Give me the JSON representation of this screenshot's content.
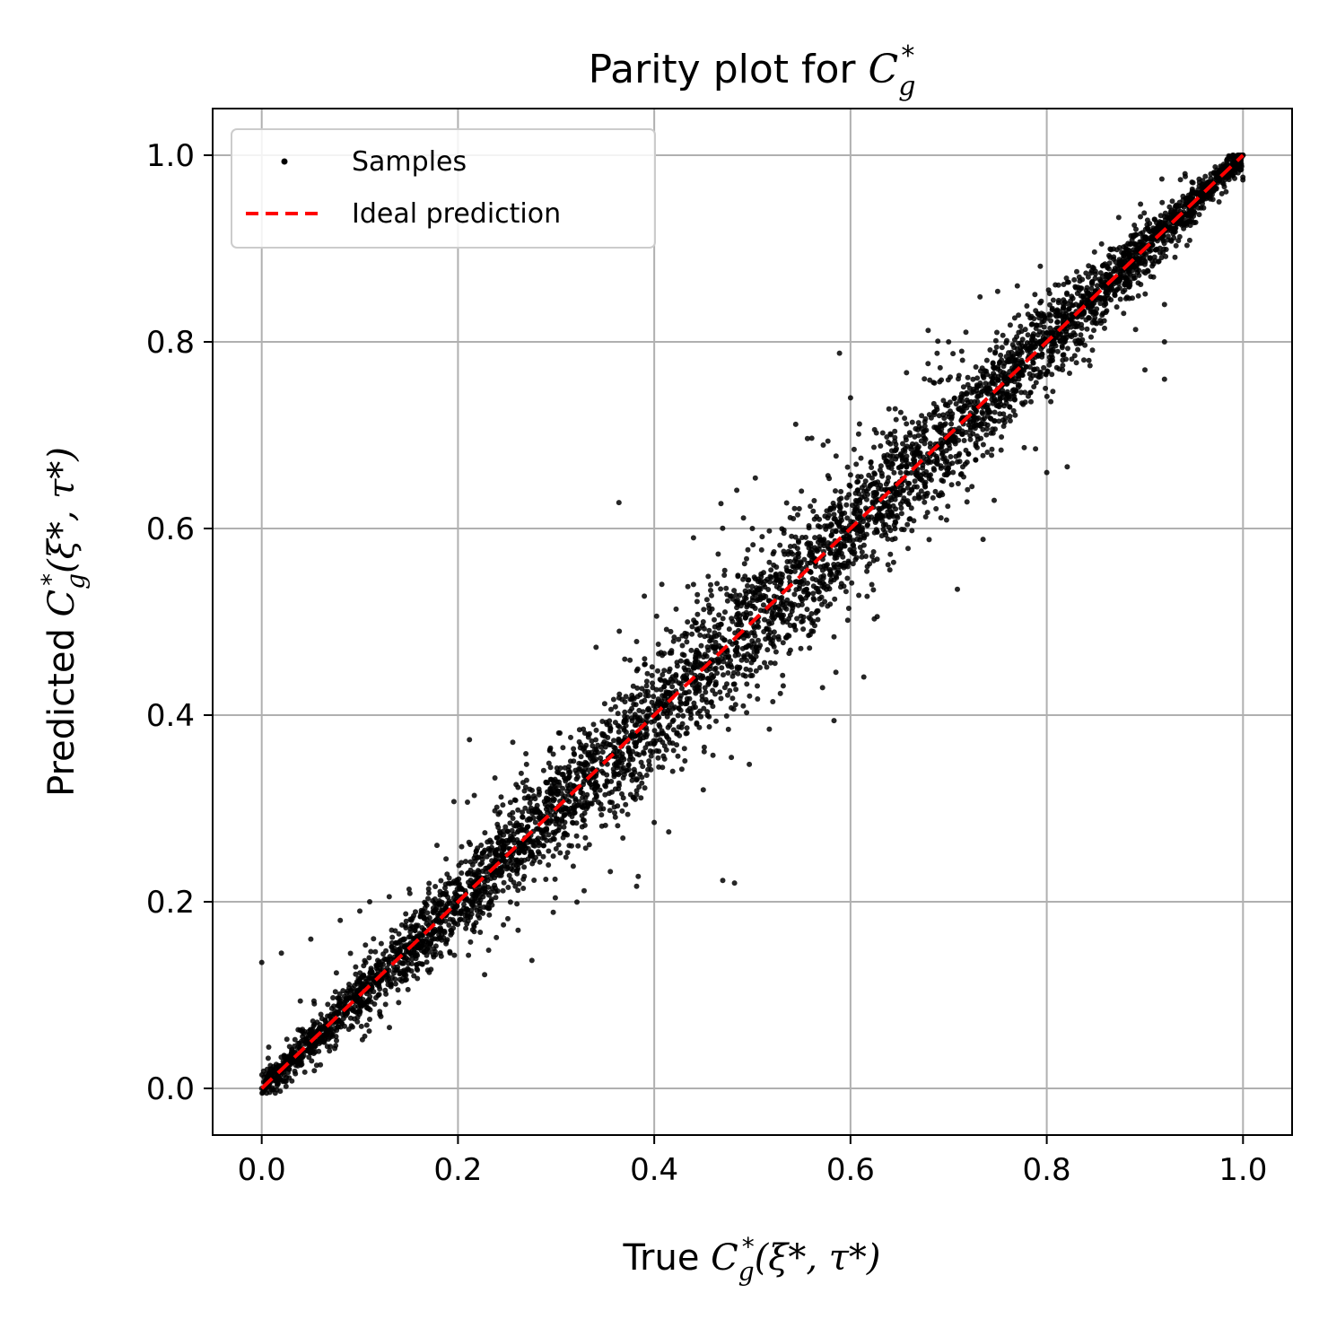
{
  "chart_data": {
    "type": "scatter",
    "title": "Parity plot for C_g^*",
    "title_text": "Parity plot for ",
    "title_math": {
      "base": "C",
      "sub": "g",
      "sup": "*"
    },
    "xlabel": "True C_g^*(ξ*, τ*)",
    "xlabel_text": "True ",
    "ylabel": "Predicted C_g^*(ξ*, τ*)",
    "ylabel_text": "Predicted ",
    "label_math": {
      "base": "C",
      "sub": "g",
      "sup": "*",
      "args": "(ξ*, τ*)"
    },
    "xlim": [
      -0.05,
      1.05
    ],
    "ylim": [
      -0.05,
      1.05
    ],
    "xticks": [
      0.0,
      0.2,
      0.4,
      0.6,
      0.8,
      1.0
    ],
    "yticks": [
      0.0,
      0.2,
      0.4,
      0.6,
      0.8,
      1.0
    ],
    "xtick_labels": [
      "0.0",
      "0.2",
      "0.4",
      "0.6",
      "0.8",
      "1.0"
    ],
    "ytick_labels": [
      "0.0",
      "0.2",
      "0.4",
      "0.6",
      "0.8",
      "1.0"
    ],
    "grid": true,
    "legend_position": "top-left",
    "series": [
      {
        "name": "Samples",
        "kind": "scatter",
        "color": "#000000",
        "description_points": [
          [
            0.0,
            0.0
          ],
          [
            0.05,
            0.05
          ],
          [
            0.1,
            0.1
          ],
          [
            0.15,
            0.15
          ],
          [
            0.2,
            0.2
          ],
          [
            0.25,
            0.25
          ],
          [
            0.3,
            0.3
          ],
          [
            0.35,
            0.35
          ],
          [
            0.4,
            0.4
          ],
          [
            0.45,
            0.45
          ],
          [
            0.5,
            0.5
          ],
          [
            0.55,
            0.55
          ],
          [
            0.6,
            0.6
          ],
          [
            0.65,
            0.65
          ],
          [
            0.7,
            0.7
          ],
          [
            0.75,
            0.75
          ],
          [
            0.8,
            0.8
          ],
          [
            0.85,
            0.85
          ],
          [
            0.9,
            0.9
          ],
          [
            0.95,
            0.95
          ],
          [
            1.0,
            1.0
          ],
          [
            0.0,
            0.135
          ],
          [
            0.02,
            0.145
          ],
          [
            0.05,
            0.16
          ],
          [
            0.08,
            0.18
          ],
          [
            0.1,
            0.19
          ],
          [
            0.11,
            0.2
          ],
          [
            0.37,
            0.46
          ],
          [
            0.45,
            0.5
          ],
          [
            0.44,
            0.54
          ],
          [
            0.44,
            0.59
          ],
          [
            0.5,
            0.6
          ],
          [
            0.55,
            0.64
          ],
          [
            0.6,
            0.74
          ],
          [
            0.7,
            0.8
          ],
          [
            0.77,
            0.86
          ],
          [
            0.92,
            0.84
          ],
          [
            0.92,
            0.8
          ],
          [
            0.9,
            0.77
          ],
          [
            0.92,
            0.76
          ],
          [
            0.45,
            0.32
          ],
          [
            0.55,
            0.5
          ],
          [
            0.66,
            0.61
          ],
          [
            0.8,
            0.66
          ],
          [
            0.4,
            0.285
          ],
          [
            0.16,
            0.16
          ],
          [
            0.04,
            0.04
          ]
        ]
      },
      {
        "name": "Ideal prediction",
        "kind": "line",
        "style": "dashed",
        "color": "#ff0000",
        "x": [
          0.0,
          1.0
        ],
        "y": [
          0.0,
          1.0
        ]
      }
    ]
  }
}
